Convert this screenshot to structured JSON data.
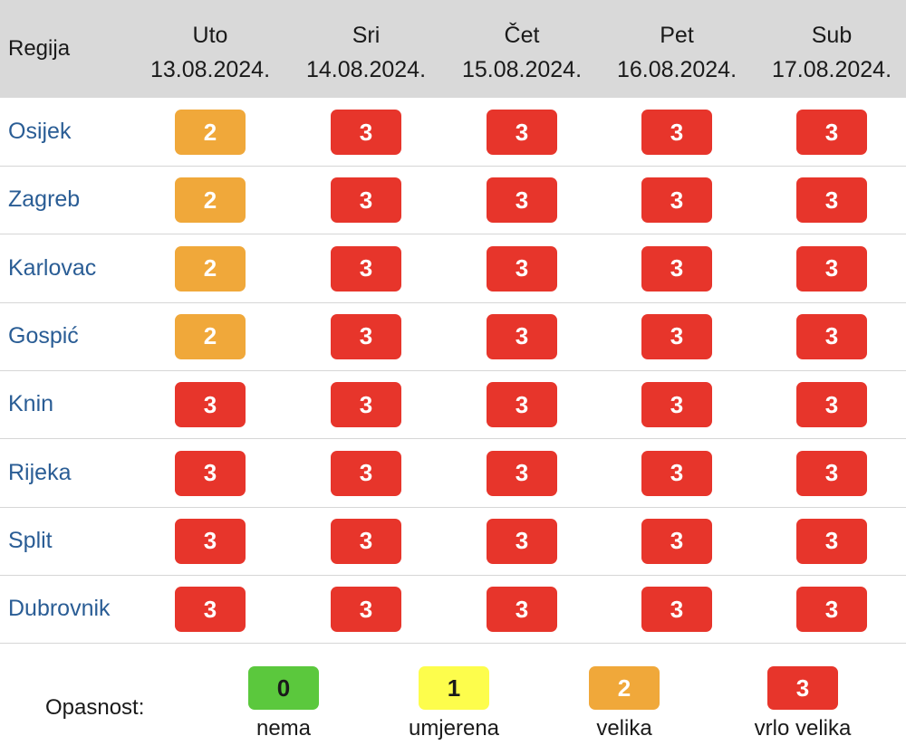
{
  "header": {
    "region_label": "Regija",
    "days": [
      {
        "day": "Uto",
        "date": "13.08.2024."
      },
      {
        "day": "Sri",
        "date": "14.08.2024."
      },
      {
        "day": "Čet",
        "date": "15.08.2024."
      },
      {
        "day": "Pet",
        "date": "16.08.2024."
      },
      {
        "day": "Sub",
        "date": "17.08.2024."
      }
    ]
  },
  "rows": [
    {
      "region": "Osijek",
      "levels": [
        2,
        3,
        3,
        3,
        3
      ]
    },
    {
      "region": "Zagreb",
      "levels": [
        2,
        3,
        3,
        3,
        3
      ]
    },
    {
      "region": "Karlovac",
      "levels": [
        2,
        3,
        3,
        3,
        3
      ]
    },
    {
      "region": "Gospić",
      "levels": [
        2,
        3,
        3,
        3,
        3
      ]
    },
    {
      "region": "Knin",
      "levels": [
        3,
        3,
        3,
        3,
        3
      ]
    },
    {
      "region": "Rijeka",
      "levels": [
        3,
        3,
        3,
        3,
        3
      ]
    },
    {
      "region": "Split",
      "levels": [
        3,
        3,
        3,
        3,
        3
      ]
    },
    {
      "region": "Dubrovnik",
      "levels": [
        3,
        3,
        3,
        3,
        3
      ]
    }
  ],
  "legend": {
    "title": "Opasnost:",
    "items": [
      {
        "value": "0",
        "label": "nema",
        "color": "#5bc83d"
      },
      {
        "value": "1",
        "label": "umjerena",
        "color": "#fdfd4c"
      },
      {
        "value": "2",
        "label": "velika",
        "color": "#f0a83a"
      },
      {
        "value": "3",
        "label": "vrlo velika",
        "color": "#e7352b"
      }
    ]
  }
}
